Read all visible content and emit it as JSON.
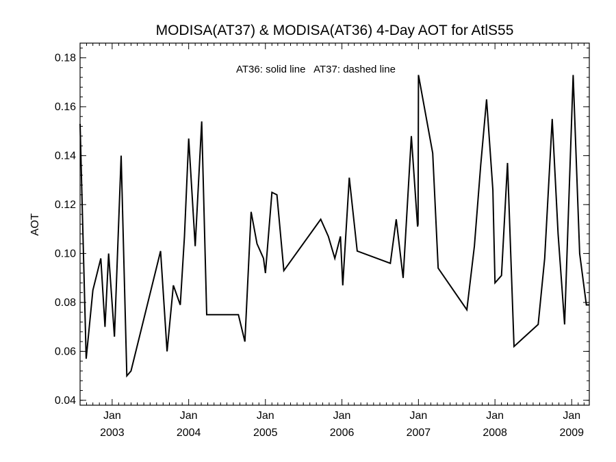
{
  "chart_data": {
    "type": "line",
    "title": "MODISA(AT37) & MODISA(AT36) 4-Day AOT for AtlS55",
    "ylabel": "AOT",
    "xlabel": "",
    "annotation": "AT36: solid line   AT37: dashed line",
    "ylim": [
      0.038,
      0.186
    ],
    "xlim": [
      "2002-08-01",
      "2009-03-26"
    ],
    "yticks": [
      "0.04",
      "0.06",
      "0.08",
      "0.10",
      "0.12",
      "0.14",
      "0.16",
      "0.18"
    ],
    "yticks_values": [
      0.04,
      0.06,
      0.08,
      0.1,
      0.12,
      0.14,
      0.16,
      0.18
    ],
    "xticks": [
      {
        "date": "2003-01-01",
        "month": "Jan",
        "year": "2003"
      },
      {
        "date": "2004-01-01",
        "month": "Jan",
        "year": "2004"
      },
      {
        "date": "2005-01-01",
        "month": "Jan",
        "year": "2005"
      },
      {
        "date": "2006-01-01",
        "month": "Jan",
        "year": "2006"
      },
      {
        "date": "2007-01-01",
        "month": "Jan",
        "year": "2007"
      },
      {
        "date": "2008-01-01",
        "month": "Jan",
        "year": "2008"
      },
      {
        "date": "2009-01-01",
        "month": "Jan",
        "year": "2009"
      }
    ],
    "series": [
      {
        "name": "AT36",
        "style": "solid",
        "x": [
          "2002-08-01",
          "2002-08-30",
          "2002-10-01",
          "2002-11-08",
          "2002-11-28",
          "2002-12-15",
          "2003-01-12",
          "2003-02-13",
          "2003-03-12",
          "2003-04-01",
          "2003-08-20",
          "2003-09-20",
          "2003-10-20",
          "2003-11-22",
          "2003-12-12",
          "2004-01-01",
          "2004-02-01",
          "2004-03-03",
          "2004-03-27",
          "2004-08-25",
          "2004-09-25",
          "2004-10-25",
          "2004-11-22",
          "2004-12-23",
          "2005-01-01",
          "2005-02-01",
          "2005-02-25",
          "2005-03-30",
          "2005-09-22",
          "2005-10-28",
          "2005-11-28",
          "2005-12-25",
          "2006-01-05",
          "2006-02-05",
          "2006-03-15",
          "2006-08-20",
          "2006-09-17",
          "2006-10-20",
          "2006-11-28",
          "2006-12-28",
          "2006-12-30",
          "2007-01-01",
          "2007-03-10",
          "2007-04-05",
          "2007-08-20",
          "2007-09-25",
          "2007-10-25",
          "2007-11-22",
          "2007-12-22",
          "2008-01-01",
          "2008-02-01",
          "2008-03-01",
          "2008-04-01",
          "2008-07-25",
          "2008-08-25",
          "2008-09-30",
          "2008-10-28",
          "2008-11-28",
          "2009-01-08",
          "2009-02-08",
          "2009-03-12",
          "2009-03-26"
        ],
        "values": [
          0.153,
          0.057,
          0.085,
          0.098,
          0.07,
          0.1,
          0.066,
          0.14,
          0.05,
          0.052,
          0.101,
          0.06,
          0.087,
          0.079,
          0.107,
          0.147,
          0.103,
          0.154,
          0.075,
          0.075,
          0.064,
          0.117,
          0.104,
          0.098,
          0.092,
          0.125,
          0.124,
          0.093,
          0.114,
          0.107,
          0.098,
          0.107,
          0.087,
          0.131,
          0.101,
          0.096,
          0.114,
          0.09,
          0.148,
          0.111,
          0.112,
          0.173,
          0.141,
          0.094,
          0.077,
          0.103,
          0.136,
          0.163,
          0.126,
          0.088,
          0.091,
          0.137,
          0.062,
          0.071,
          0.098,
          0.155,
          0.108,
          0.071,
          0.173,
          0.1,
          0.079,
          0.079
        ]
      }
    ],
    "grid": false,
    "legend": "none"
  }
}
